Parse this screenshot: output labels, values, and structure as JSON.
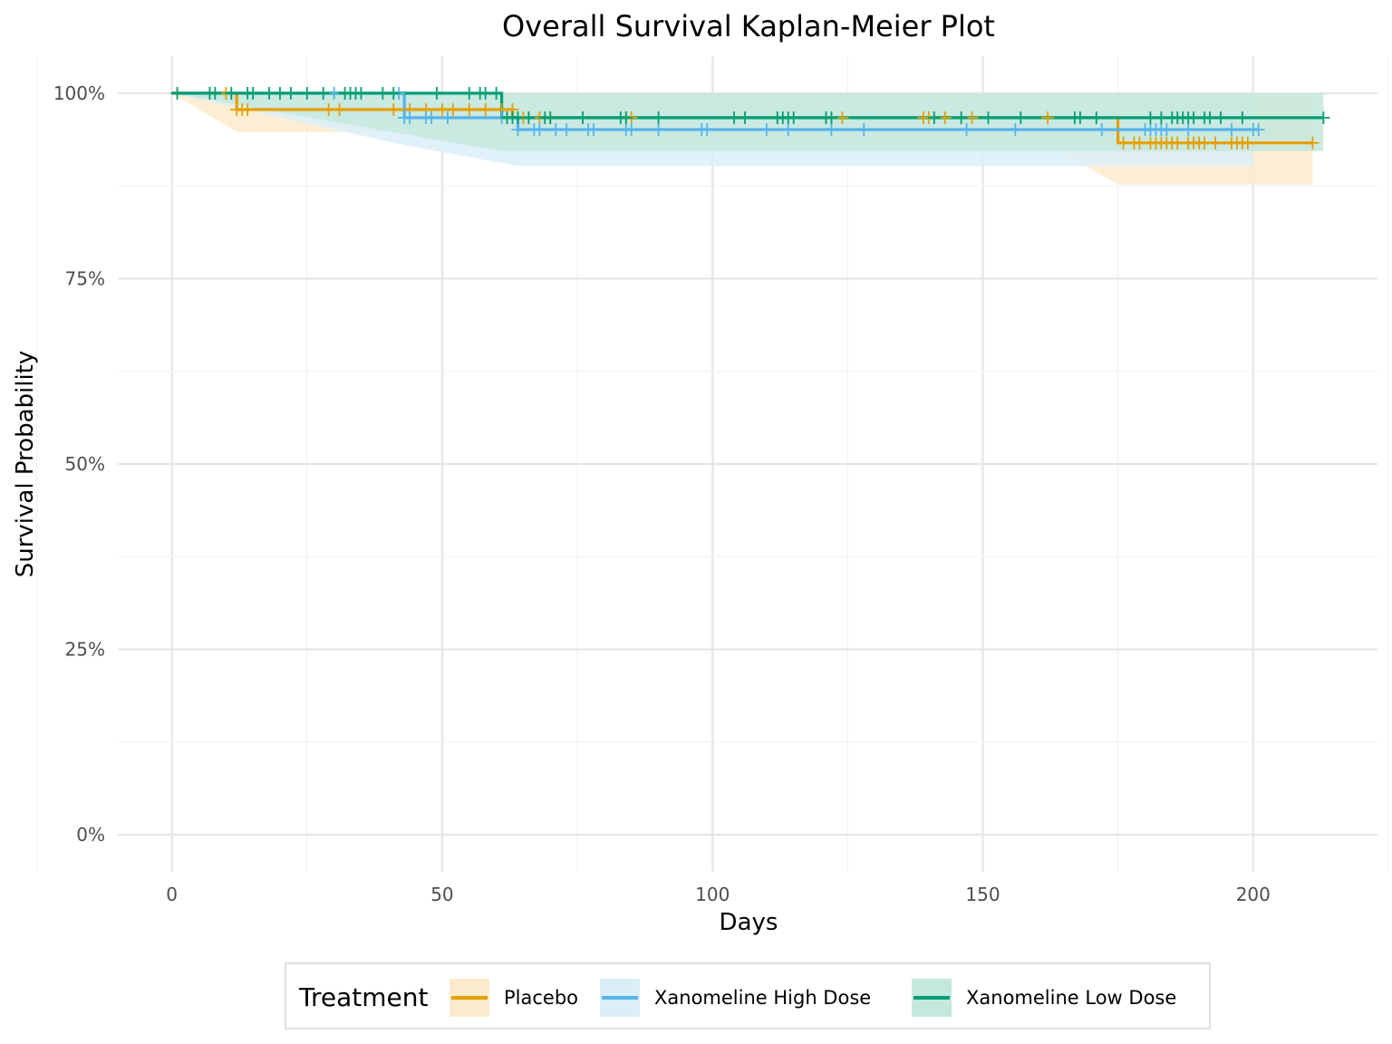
{
  "chart_data": {
    "type": "line",
    "subtype": "kaplan-meier-step",
    "title": "Overall Survival Kaplan-Meier Plot",
    "xlabel": "Days",
    "ylabel": "Survival Probability",
    "xlim": [
      -10,
      223
    ],
    "ylim": [
      -0.05,
      1.05
    ],
    "x_ticks": [
      0,
      50,
      100,
      150,
      200
    ],
    "x_tick_labels": [
      "0",
      "50",
      "100",
      "150",
      "200"
    ],
    "y_ticks": [
      0,
      0.25,
      0.5,
      0.75,
      1.0
    ],
    "y_tick_labels": [
      "0%",
      "25%",
      "50%",
      "75%",
      "100%"
    ],
    "grid": true,
    "legend": {
      "title": "Treatment",
      "position": "bottom"
    },
    "series": [
      {
        "name": "Placebo",
        "color": "#E69F00",
        "fill": "#FBEBCC",
        "steps": [
          [
            0,
            1.0
          ],
          [
            12,
            0.978
          ],
          [
            63,
            0.967
          ],
          [
            175,
            0.933
          ],
          [
            211,
            0.933
          ]
        ],
        "ci_lower": [
          [
            0,
            1.0
          ],
          [
            12,
            0.948
          ],
          [
            63,
            0.948
          ],
          [
            158,
            0.948
          ],
          [
            175,
            0.877
          ],
          [
            211,
            0.877
          ]
        ],
        "ci_upper": [
          [
            0,
            1.0
          ],
          [
            175,
            0.995
          ],
          [
            211,
            0.995
          ]
        ],
        "censored": [
          [
            1,
            1.0
          ],
          [
            7,
            1.0
          ],
          [
            10,
            1.0
          ],
          [
            12,
            0.978
          ],
          [
            13,
            0.978
          ],
          [
            14,
            0.978
          ],
          [
            29,
            0.978
          ],
          [
            31,
            0.978
          ],
          [
            41,
            0.978
          ],
          [
            44,
            0.978
          ],
          [
            47,
            0.978
          ],
          [
            50,
            0.978
          ],
          [
            52,
            0.978
          ],
          [
            55,
            0.978
          ],
          [
            58,
            0.978
          ],
          [
            61,
            0.978
          ],
          [
            63,
            0.978
          ],
          [
            65,
            0.967
          ],
          [
            68,
            0.967
          ],
          [
            70,
            0.967
          ],
          [
            84,
            0.967
          ],
          [
            85,
            0.967
          ],
          [
            122,
            0.967
          ],
          [
            124,
            0.967
          ],
          [
            139,
            0.967
          ],
          [
            140,
            0.967
          ],
          [
            143,
            0.967
          ],
          [
            148,
            0.967
          ],
          [
            162,
            0.967
          ],
          [
            176,
            0.933
          ],
          [
            178,
            0.933
          ],
          [
            179,
            0.933
          ],
          [
            181,
            0.933
          ],
          [
            182,
            0.933
          ],
          [
            183,
            0.933
          ],
          [
            184,
            0.933
          ],
          [
            185,
            0.933
          ],
          [
            186,
            0.933
          ],
          [
            188,
            0.933
          ],
          [
            189,
            0.933
          ],
          [
            190,
            0.933
          ],
          [
            191,
            0.933
          ],
          [
            193,
            0.933
          ],
          [
            196,
            0.933
          ],
          [
            197,
            0.933
          ],
          [
            198,
            0.933
          ],
          [
            199,
            0.933
          ],
          [
            211,
            0.933
          ]
        ]
      },
      {
        "name": "Xanomeline High Dose",
        "color": "#56B4E9",
        "fill": "#DAEEF8",
        "steps": [
          [
            0,
            1.0
          ],
          [
            43,
            0.967
          ],
          [
            61,
            0.967
          ],
          [
            64,
            0.951
          ],
          [
            201,
            0.951
          ]
        ],
        "ci_lower": [
          [
            0,
            1.0
          ],
          [
            43,
            0.93
          ],
          [
            64,
            0.902
          ],
          [
            200,
            0.902
          ]
        ],
        "ci_upper": [
          [
            0,
            1.0
          ],
          [
            200,
            1.0
          ]
        ],
        "censored": [
          [
            30,
            1.0
          ],
          [
            42,
            1.0
          ],
          [
            43,
            0.967
          ],
          [
            44,
            0.967
          ],
          [
            47,
            0.967
          ],
          [
            48,
            0.967
          ],
          [
            51,
            0.967
          ],
          [
            61,
            0.967
          ],
          [
            62,
            0.967
          ],
          [
            64,
            0.951
          ],
          [
            67,
            0.951
          ],
          [
            68,
            0.951
          ],
          [
            71,
            0.951
          ],
          [
            73,
            0.951
          ],
          [
            77,
            0.951
          ],
          [
            78,
            0.951
          ],
          [
            84,
            0.951
          ],
          [
            85,
            0.951
          ],
          [
            90,
            0.951
          ],
          [
            98,
            0.951
          ],
          [
            99,
            0.951
          ],
          [
            110,
            0.951
          ],
          [
            114,
            0.951
          ],
          [
            122,
            0.951
          ],
          [
            128,
            0.951
          ],
          [
            147,
            0.951
          ],
          [
            156,
            0.951
          ],
          [
            172,
            0.951
          ],
          [
            180,
            0.951
          ],
          [
            181,
            0.951
          ],
          [
            182,
            0.951
          ],
          [
            183,
            0.951
          ],
          [
            184,
            0.951
          ],
          [
            188,
            0.951
          ],
          [
            196,
            0.951
          ],
          [
            200,
            0.951
          ],
          [
            201,
            0.951
          ]
        ]
      },
      {
        "name": "Xanomeline Low Dose",
        "color": "#009E73",
        "fill": "#C4E8DD",
        "steps": [
          [
            0,
            1.0
          ],
          [
            61,
            1.0
          ],
          [
            61,
            0.967
          ],
          [
            213,
            0.967
          ]
        ],
        "ci_lower": [
          [
            0,
            1.0
          ],
          [
            61,
            0.922
          ],
          [
            213,
            0.922
          ]
        ],
        "ci_upper": [
          [
            0,
            1.0
          ],
          [
            213,
            1.0
          ]
        ],
        "censored": [
          [
            1,
            1.0
          ],
          [
            7,
            1.0
          ],
          [
            8,
            1.0
          ],
          [
            11,
            1.0
          ],
          [
            14,
            1.0
          ],
          [
            15,
            1.0
          ],
          [
            18,
            1.0
          ],
          [
            20,
            1.0
          ],
          [
            22,
            1.0
          ],
          [
            25,
            1.0
          ],
          [
            28,
            1.0
          ],
          [
            32,
            1.0
          ],
          [
            33,
            1.0
          ],
          [
            34,
            1.0
          ],
          [
            35,
            1.0
          ],
          [
            39,
            1.0
          ],
          [
            41,
            1.0
          ],
          [
            49,
            1.0
          ],
          [
            55,
            1.0
          ],
          [
            57,
            1.0
          ],
          [
            58,
            1.0
          ],
          [
            60,
            1.0
          ],
          [
            62,
            0.967
          ],
          [
            63,
            0.967
          ],
          [
            64,
            0.967
          ],
          [
            66,
            0.967
          ],
          [
            69,
            0.967
          ],
          [
            70,
            0.967
          ],
          [
            76,
            0.967
          ],
          [
            83,
            0.967
          ],
          [
            84,
            0.967
          ],
          [
            90,
            0.967
          ],
          [
            104,
            0.967
          ],
          [
            106,
            0.967
          ],
          [
            112,
            0.967
          ],
          [
            113,
            0.967
          ],
          [
            114,
            0.967
          ],
          [
            115,
            0.967
          ],
          [
            121,
            0.967
          ],
          [
            122,
            0.967
          ],
          [
            141,
            0.967
          ],
          [
            146,
            0.967
          ],
          [
            151,
            0.967
          ],
          [
            157,
            0.967
          ],
          [
            167,
            0.967
          ],
          [
            168,
            0.967
          ],
          [
            171,
            0.967
          ],
          [
            181,
            0.967
          ],
          [
            183,
            0.967
          ],
          [
            185,
            0.967
          ],
          [
            186,
            0.967
          ],
          [
            187,
            0.967
          ],
          [
            188,
            0.967
          ],
          [
            189,
            0.967
          ],
          [
            191,
            0.967
          ],
          [
            192,
            0.967
          ],
          [
            194,
            0.967
          ],
          [
            198,
            0.967
          ],
          [
            213,
            0.967
          ]
        ]
      }
    ]
  }
}
